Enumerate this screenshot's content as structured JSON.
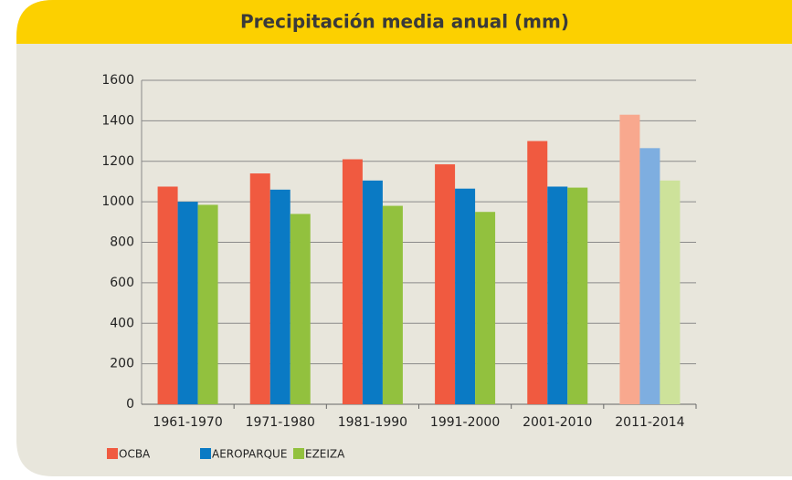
{
  "chart_data": {
    "type": "bar",
    "title": "Precipitación media anual (mm)",
    "categories": [
      "1961-1970",
      "1971-1980",
      "1981-1990",
      "1991-2000",
      "2001-2010",
      "2011-2014"
    ],
    "series": [
      {
        "name": "OCBA",
        "color": "#f05a40",
        "colors": [
          "#f05a40",
          "#f05a40",
          "#f05a40",
          "#f05a40",
          "#f05a40",
          "#f8a88e"
        ],
        "values": [
          1075,
          1140,
          1210,
          1185,
          1300,
          1430
        ]
      },
      {
        "name": "AEROPARQUE",
        "color": "#0a7ac4",
        "colors": [
          "#0a7ac4",
          "#0a7ac4",
          "#0a7ac4",
          "#0a7ac4",
          "#0a7ac4",
          "#7eaee0"
        ],
        "values": [
          1000,
          1060,
          1105,
          1065,
          1075,
          1265
        ]
      },
      {
        "name": "EZEIZA",
        "color": "#92c13e",
        "colors": [
          "#92c13e",
          "#92c13e",
          "#92c13e",
          "#92c13e",
          "#92c13e",
          "#cde29a"
        ],
        "values": [
          985,
          940,
          980,
          950,
          1070,
          1105
        ]
      }
    ],
    "ylim": [
      0,
      1600
    ],
    "yticks": [
      0,
      200,
      400,
      600,
      800,
      1000,
      1200,
      1400,
      1600
    ],
    "grid": true,
    "legend": "bottom-left"
  }
}
